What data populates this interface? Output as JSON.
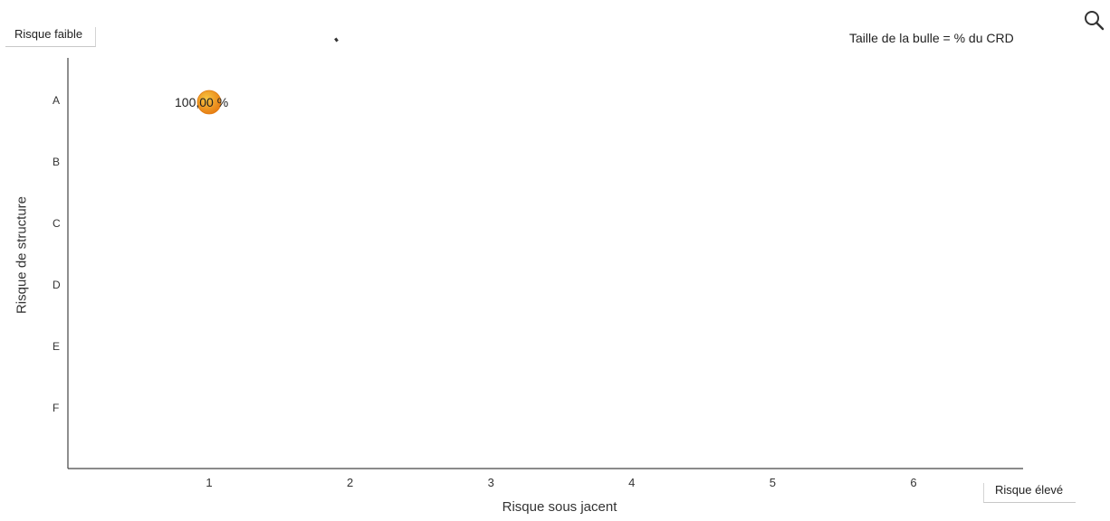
{
  "corner_labels": {
    "low": "Risque faible",
    "high": "Risque élevé"
  },
  "bubble_legend": "Taille de la bulle = % du CRD",
  "zoom_icon": "search-icon",
  "chart_data": {
    "type": "scatter",
    "xlabel": "Risque sous jacent",
    "ylabel": "Risque de structure",
    "x_categories": [
      "1",
      "2",
      "3",
      "4",
      "5",
      "6"
    ],
    "y_categories": [
      "A",
      "B",
      "C",
      "D",
      "E",
      "F"
    ],
    "points": [
      {
        "x": "1",
        "y": "A",
        "size": 100,
        "label": "100,00 %"
      }
    ],
    "colors": {
      "bubble": "#f0a020",
      "bubble_edge": "#e07a10",
      "axis": "#444444"
    }
  }
}
